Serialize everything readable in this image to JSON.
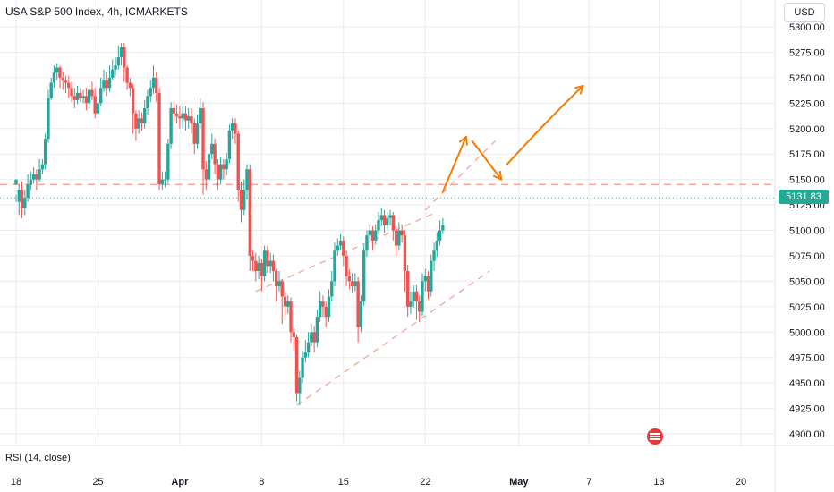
{
  "header": {
    "title": "USA S&P 500 Index, 4h, ICMARKETS",
    "currency_button": "USD"
  },
  "indicator": {
    "label": "RSI (14, close)"
  },
  "colors": {
    "up": "#26a69a",
    "down": "#ef5350",
    "current_price": "#22ab94",
    "annotation_lines": "#f7a399",
    "arrows": "#f57c00",
    "grid": "#e9ebf0"
  },
  "chart_data": {
    "type": "candlestick",
    "title": "USA S&P 500 Index, 4h, ICMARKETS",
    "symbol": "USA S&P 500 Index",
    "interval": "4h",
    "exchange": "ICMARKETS",
    "currency": "USD",
    "current_price": 5131.83,
    "current_price_label": "5131.83",
    "y_ticks": [
      5300,
      5275,
      5250,
      5225,
      5200,
      5175,
      5150,
      5125,
      5100,
      5075,
      5050,
      5025,
      5000,
      4975,
      4950,
      4925,
      4900
    ],
    "y_tick_labels": [
      "5300.00",
      "5275.00",
      "5250.00",
      "5225.00",
      "5200.00",
      "5175.00",
      "5150.00",
      "5125.00",
      "5100.00",
      "5075.00",
      "5050.00",
      "5025.00",
      "5000.00",
      "4975.00",
      "4950.00",
      "4925.00",
      "4900.00"
    ],
    "ylim": [
      4895,
      5305
    ],
    "x_tick_labels": [
      "18",
      "25",
      "Apr",
      "8",
      "15",
      "22",
      "May",
      "7",
      "13",
      "20"
    ],
    "x_tick_days": [
      0,
      7,
      14,
      21,
      28,
      35,
      43,
      49,
      55,
      62
    ],
    "xlim_days": [
      -1.5,
      64.5
    ],
    "grid": true,
    "candles": [
      [
        0,
        5145,
        5150,
        5135,
        5128
      ],
      [
        0.25,
        5128,
        5140,
        5145,
        5115
      ],
      [
        0.5,
        5140,
        5122,
        5148,
        5112
      ],
      [
        0.75,
        5122,
        5132,
        5140,
        5115
      ],
      [
        1,
        5132,
        5145,
        5155,
        5128
      ],
      [
        1.25,
        5145,
        5150,
        5158,
        5140
      ],
      [
        1.5,
        5150,
        5155,
        5162,
        5146
      ],
      [
        1.75,
        5155,
        5150,
        5160,
        5140
      ],
      [
        2,
        5150,
        5160,
        5170,
        5148
      ],
      [
        2.25,
        5160,
        5165,
        5170,
        5155
      ],
      [
        2.5,
        5165,
        5190,
        5195,
        5160
      ],
      [
        2.75,
        5190,
        5230,
        5238,
        5186
      ],
      [
        3,
        5230,
        5245,
        5250,
        5228
      ],
      [
        3.25,
        5245,
        5255,
        5262,
        5240
      ],
      [
        3.5,
        5255,
        5260,
        5264,
        5248
      ],
      [
        3.75,
        5260,
        5250,
        5262,
        5240
      ],
      [
        4,
        5250,
        5248,
        5256,
        5238
      ],
      [
        4.25,
        5248,
        5245,
        5252,
        5235
      ],
      [
        4.5,
        5245,
        5240,
        5252,
        5230
      ],
      [
        4.75,
        5240,
        5232,
        5246,
        5226
      ],
      [
        5,
        5232,
        5228,
        5240,
        5220
      ],
      [
        5.25,
        5228,
        5235,
        5242,
        5224
      ],
      [
        5.5,
        5235,
        5230,
        5240,
        5226
      ],
      [
        5.75,
        5230,
        5232,
        5238,
        5225
      ],
      [
        6,
        5232,
        5225,
        5240,
        5218
      ],
      [
        6.25,
        5225,
        5238,
        5244,
        5220
      ],
      [
        6.5,
        5238,
        5232,
        5246,
        5228
      ],
      [
        6.75,
        5232,
        5215,
        5240,
        5210
      ],
      [
        7,
        5215,
        5225,
        5232,
        5210
      ],
      [
        7.25,
        5225,
        5240,
        5250,
        5222
      ],
      [
        7.5,
        5240,
        5248,
        5258,
        5236
      ],
      [
        7.75,
        5248,
        5240,
        5256,
        5232
      ],
      [
        8,
        5240,
        5250,
        5262,
        5236
      ],
      [
        8.25,
        5250,
        5258,
        5268,
        5248
      ],
      [
        8.5,
        5258,
        5262,
        5270,
        5252
      ],
      [
        8.75,
        5262,
        5270,
        5282,
        5258
      ],
      [
        9,
        5270,
        5280,
        5284,
        5262
      ],
      [
        9.25,
        5280,
        5260,
        5284,
        5246
      ],
      [
        9.5,
        5260,
        5245,
        5262,
        5238
      ],
      [
        9.75,
        5245,
        5240,
        5250,
        5232
      ],
      [
        10,
        5240,
        5215,
        5244,
        5195
      ],
      [
        10.25,
        5215,
        5200,
        5218,
        5188
      ],
      [
        10.5,
        5200,
        5210,
        5218,
        5195
      ],
      [
        10.75,
        5210,
        5205,
        5216,
        5198
      ],
      [
        11,
        5205,
        5220,
        5228,
        5200
      ],
      [
        11.25,
        5220,
        5232,
        5238,
        5214
      ],
      [
        11.5,
        5232,
        5240,
        5248,
        5226
      ],
      [
        11.75,
        5240,
        5250,
        5262,
        5234
      ],
      [
        12,
        5250,
        5235,
        5256,
        5226
      ],
      [
        12.25,
        5235,
        5145,
        5240,
        5140
      ],
      [
        12.5,
        5145,
        5150,
        5158,
        5140
      ],
      [
        12.75,
        5150,
        5150,
        5158,
        5142
      ],
      [
        13,
        5150,
        5185,
        5190,
        5146
      ],
      [
        13.25,
        5185,
        5220,
        5226,
        5180
      ],
      [
        13.5,
        5220,
        5215,
        5226,
        5205
      ],
      [
        13.75,
        5215,
        5212,
        5224,
        5205
      ],
      [
        14,
        5212,
        5210,
        5222,
        5200
      ],
      [
        14.25,
        5210,
        5215,
        5222,
        5200
      ],
      [
        14.5,
        5215,
        5208,
        5222,
        5198
      ],
      [
        14.75,
        5208,
        5212,
        5220,
        5200
      ],
      [
        15,
        5212,
        5205,
        5220,
        5195
      ],
      [
        15.25,
        5205,
        5185,
        5210,
        5175
      ],
      [
        15.5,
        5185,
        5205,
        5214,
        5180
      ],
      [
        15.75,
        5205,
        5220,
        5230,
        5200
      ],
      [
        16,
        5220,
        5160,
        5226,
        5135
      ],
      [
        16.25,
        5160,
        5150,
        5168,
        5140
      ],
      [
        16.5,
        5150,
        5175,
        5182,
        5145
      ],
      [
        16.75,
        5175,
        5185,
        5195,
        5170
      ],
      [
        17,
        5185,
        5165,
        5190,
        5155
      ],
      [
        17.25,
        5165,
        5150,
        5170,
        5140
      ],
      [
        17.5,
        5150,
        5165,
        5172,
        5145
      ],
      [
        17.75,
        5165,
        5160,
        5170,
        5150
      ],
      [
        18,
        5160,
        5170,
        5176,
        5154
      ],
      [
        18.25,
        5170,
        5198,
        5204,
        5166
      ],
      [
        18.5,
        5198,
        5205,
        5210,
        5190
      ],
      [
        18.75,
        5205,
        5195,
        5210,
        5185
      ],
      [
        19,
        5195,
        5140,
        5198,
        5128
      ],
      [
        19.25,
        5140,
        5120,
        5148,
        5108
      ],
      [
        19.5,
        5120,
        5140,
        5150,
        5115
      ],
      [
        19.75,
        5140,
        5160,
        5165,
        5130
      ],
      [
        20,
        5160,
        5075,
        5165,
        5060
      ],
      [
        20.25,
        5075,
        5070,
        5080,
        5060
      ],
      [
        20.5,
        5070,
        5060,
        5078,
        5050
      ],
      [
        20.75,
        5060,
        5068,
        5075,
        5052
      ],
      [
        21,
        5068,
        5055,
        5072,
        5040
      ],
      [
        21.25,
        5055,
        5080,
        5085,
        5050
      ],
      [
        21.5,
        5080,
        5065,
        5085,
        5058
      ],
      [
        21.75,
        5065,
        5070,
        5078,
        5058
      ],
      [
        22,
        5070,
        5060,
        5076,
        5050
      ],
      [
        22.25,
        5060,
        5045,
        5062,
        5030
      ],
      [
        22.5,
        5045,
        5050,
        5060,
        5040
      ],
      [
        22.75,
        5050,
        5035,
        5052,
        5008
      ],
      [
        23,
        5035,
        5025,
        5040,
        5015
      ],
      [
        23.25,
        5025,
        5030,
        5036,
        5018
      ],
      [
        23.5,
        5030,
        5000,
        5034,
        4990
      ],
      [
        23.75,
        5000,
        4995,
        5004,
        4982
      ],
      [
        24,
        4995,
        4940,
        4998,
        4932
      ],
      [
        24.25,
        4940,
        4955,
        4962,
        4928
      ],
      [
        24.5,
        4955,
        4975,
        4982,
        4950
      ],
      [
        24.75,
        4975,
        4980,
        4992,
        4970
      ],
      [
        25,
        4980,
        4990,
        5000,
        4975
      ],
      [
        25.25,
        4990,
        5000,
        5008,
        4986
      ],
      [
        25.5,
        5000,
        4990,
        5006,
        4980
      ],
      [
        25.75,
        4990,
        5015,
        5022,
        4985
      ],
      [
        26,
        5015,
        5030,
        5040,
        5010
      ],
      [
        26.25,
        5030,
        5025,
        5036,
        5015
      ],
      [
        26.5,
        5025,
        5015,
        5030,
        5005
      ],
      [
        26.75,
        5015,
        5035,
        5042,
        5010
      ],
      [
        27,
        5035,
        5050,
        5060,
        5030
      ],
      [
        27.25,
        5050,
        5080,
        5088,
        5045
      ],
      [
        27.5,
        5080,
        5085,
        5092,
        5075
      ],
      [
        27.75,
        5085,
        5090,
        5096,
        5080
      ],
      [
        28,
        5090,
        5075,
        5094,
        5065
      ],
      [
        28.25,
        5075,
        5055,
        5080,
        5045
      ],
      [
        28.5,
        5055,
        5050,
        5062,
        5042
      ],
      [
        28.75,
        5050,
        5045,
        5058,
        5038
      ],
      [
        29,
        5045,
        5050,
        5058,
        5040
      ],
      [
        29.25,
        5050,
        5005,
        5054,
        4990
      ],
      [
        29.5,
        5005,
        5030,
        5036,
        5000
      ],
      [
        29.75,
        5030,
        5080,
        5086,
        5026
      ],
      [
        30,
        5080,
        5095,
        5100,
        5074
      ],
      [
        30.25,
        5095,
        5100,
        5106,
        5088
      ],
      [
        30.5,
        5100,
        5090,
        5104,
        5080
      ],
      [
        30.75,
        5090,
        5100,
        5106,
        5086
      ],
      [
        31,
        5100,
        5110,
        5118,
        5096
      ],
      [
        31.25,
        5110,
        5115,
        5122,
        5104
      ],
      [
        31.5,
        5115,
        5105,
        5120,
        5098
      ],
      [
        31.75,
        5105,
        5112,
        5118,
        5100
      ],
      [
        32,
        5112,
        5115,
        5120,
        5105
      ],
      [
        32.25,
        5115,
        5100,
        5118,
        5090
      ],
      [
        32.5,
        5100,
        5085,
        5104,
        5075
      ],
      [
        32.75,
        5085,
        5100,
        5108,
        5080
      ],
      [
        33,
        5100,
        5095,
        5106,
        5088
      ],
      [
        33.25,
        5095,
        5060,
        5100,
        5040
      ],
      [
        33.5,
        5060,
        5025,
        5066,
        5015
      ],
      [
        33.75,
        5025,
        5030,
        5040,
        5018
      ],
      [
        34,
        5030,
        5040,
        5046,
        5024
      ],
      [
        34.25,
        5040,
        5030,
        5046,
        5012
      ],
      [
        34.5,
        5030,
        5020,
        5036,
        5010
      ],
      [
        34.75,
        5020,
        5050,
        5058,
        5016
      ],
      [
        35,
        5050,
        5055,
        5062,
        5040
      ],
      [
        35.25,
        5055,
        5040,
        5060,
        5032
      ],
      [
        35.5,
        5040,
        5070,
        5076,
        5035
      ],
      [
        35.75,
        5070,
        5080,
        5088,
        5060
      ],
      [
        36,
        5080,
        5090,
        5098,
        5074
      ],
      [
        36.25,
        5090,
        5100,
        5110,
        5085
      ],
      [
        36.5,
        5100,
        5105,
        5112,
        5096
      ]
    ],
    "horizontal_line": {
      "price": 5145,
      "style": "dashed"
    },
    "channel_lines": [
      {
        "from": [
          20.5,
          5040
        ],
        "to": [
          36.0,
          5118
        ],
        "style": "dashed"
      },
      {
        "from": [
          35.0,
          5120
        ],
        "to": [
          41.0,
          5188
        ],
        "style": "dashed"
      },
      {
        "from": [
          24.0,
          4928
        ],
        "to": [
          40.5,
          5060
        ],
        "style": "dashed"
      }
    ],
    "projection_arrows": [
      {
        "points": [
          [
            36.5,
            5138
          ],
          [
            38.5,
            5192
          ]
        ]
      },
      {
        "points": [
          [
            39.0,
            5188
          ],
          [
            41.5,
            5150
          ]
        ]
      },
      {
        "points": [
          [
            42.0,
            5165
          ],
          [
            46.0,
            5215
          ],
          [
            48.5,
            5242
          ]
        ]
      }
    ]
  }
}
